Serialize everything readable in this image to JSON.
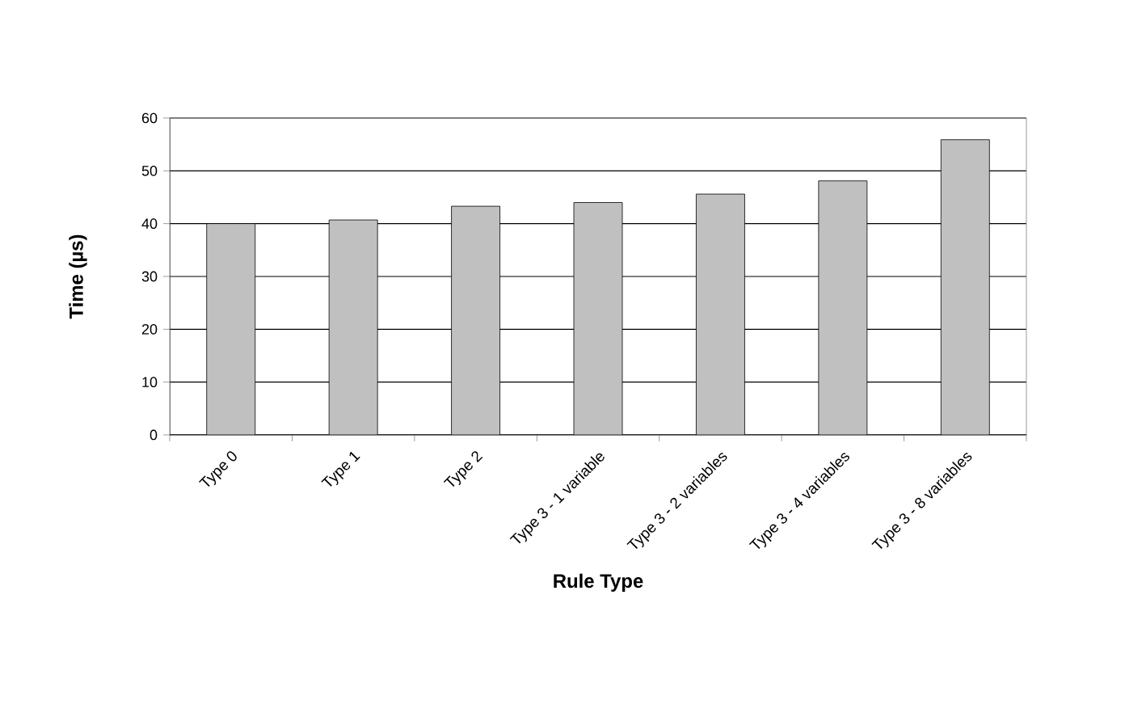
{
  "chart_data": {
    "type": "bar",
    "xlabel": "Rule Type",
    "ylabel": "Time (µs)",
    "categories": [
      "Type 0",
      "Type 1",
      "Type 2",
      "Type 3 - 1 variable",
      "Type 3 - 2 variables",
      "Type 3 - 4 variables",
      "Type 3 - 8 variables"
    ],
    "values": [
      40,
      40.7,
      43.3,
      44,
      45.6,
      48.1,
      55.9
    ],
    "color": "#c0c0c0",
    "ylim": [
      0,
      60
    ],
    "yticks": [
      0,
      10,
      20,
      30,
      40,
      50,
      60
    ],
    "grid": "y"
  }
}
